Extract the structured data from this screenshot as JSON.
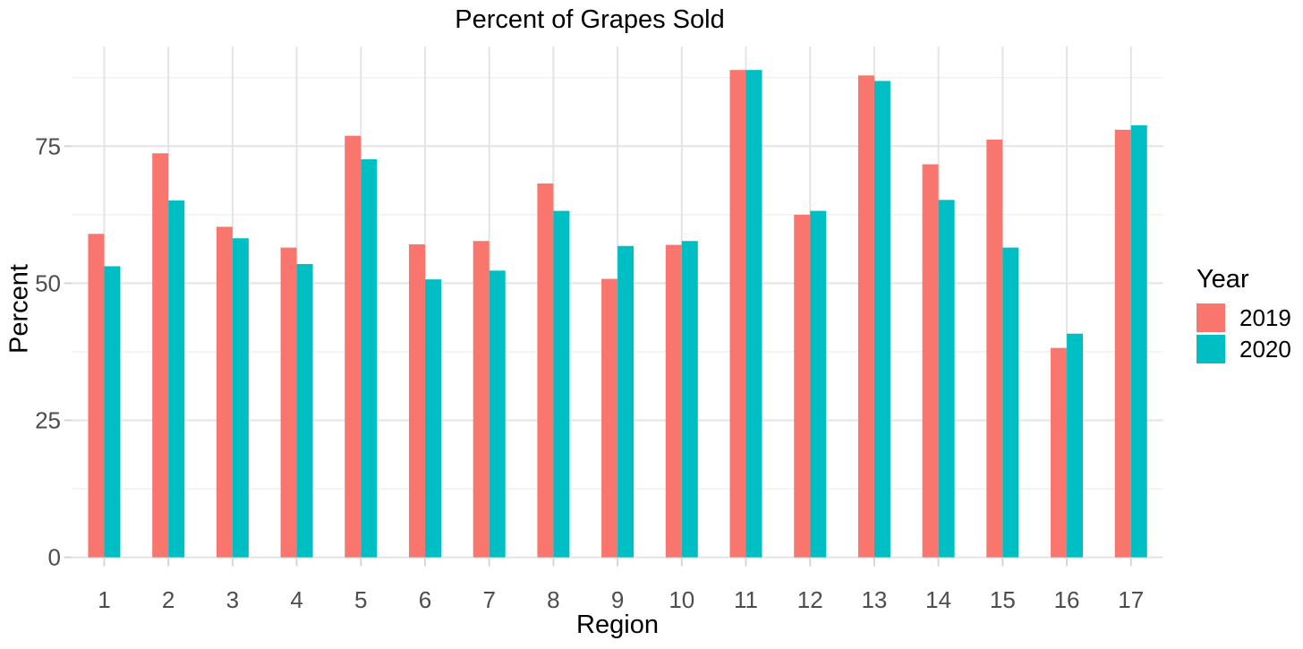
{
  "chart_data": {
    "type": "bar",
    "bar_layout": "grouped-dodge",
    "title": "Percent of Grapes Sold",
    "xlabel": "Region",
    "ylabel": "Percent",
    "categories": [
      "1",
      "2",
      "3",
      "4",
      "5",
      "6",
      "7",
      "8",
      "9",
      "10",
      "11",
      "12",
      "13",
      "14",
      "15",
      "16",
      "17"
    ],
    "series": [
      {
        "name": "2019",
        "color": "#F8766D",
        "values": [
          59.0,
          73.7,
          60.3,
          56.5,
          76.9,
          57.1,
          57.7,
          68.2,
          50.8,
          57.0,
          88.9,
          62.5,
          87.9,
          71.7,
          76.2,
          38.2,
          78.0
        ]
      },
      {
        "name": "2020",
        "color": "#00BFC4",
        "values": [
          53.1,
          65.1,
          58.2,
          53.5,
          72.6,
          50.7,
          52.3,
          63.2,
          56.8,
          57.7,
          88.9,
          63.2,
          86.9,
          65.2,
          56.5,
          40.8,
          78.8
        ]
      }
    ],
    "yticks": [
      0,
      25,
      50,
      75
    ],
    "y_minor_gridlines": [
      12.5,
      37.5,
      62.5,
      87.5
    ],
    "ylim": [
      0,
      93.2
    ],
    "grid": {
      "horizontal": "major+minor",
      "vertical": "major at each category center"
    },
    "legend": {
      "title": "Year",
      "position": "right"
    }
  }
}
